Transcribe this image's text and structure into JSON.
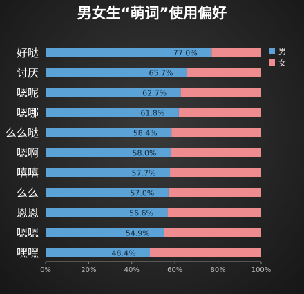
{
  "chart_data": {
    "type": "bar",
    "stacked": true,
    "orientation": "horizontal",
    "title": "男女生“萌词”使用偏好",
    "categories": [
      "好哒",
      "讨厌",
      "嗯呢",
      "嗯哪",
      "么么哒",
      "嗯啊",
      "嘻嘻",
      "么么",
      "恩恩",
      "嗯嗯",
      "嘿嘿"
    ],
    "series": [
      {
        "name": "男",
        "color": "#5ba2d6",
        "values": [
          77.0,
          65.7,
          62.7,
          61.8,
          58.4,
          58.0,
          57.7,
          57.0,
          56.6,
          54.9,
          48.4
        ]
      },
      {
        "name": "女",
        "color": "#ef8c90",
        "values": [
          23.0,
          34.3,
          37.3,
          38.2,
          41.6,
          42.0,
          42.3,
          43.0,
          43.4,
          45.1,
          51.6
        ]
      }
    ],
    "data_labels": [
      "77.0%",
      "65.7%",
      "62.7%",
      "61.8%",
      "58.4%",
      "58.0%",
      "57.7%",
      "57.0%",
      "56.6%",
      "54.9%",
      "48.4%"
    ],
    "xlim": [
      0,
      100
    ],
    "xticks": [
      "0%",
      "20%",
      "40%",
      "60%",
      "80%",
      "100%"
    ],
    "legend_position": "top-right",
    "grid": false
  }
}
